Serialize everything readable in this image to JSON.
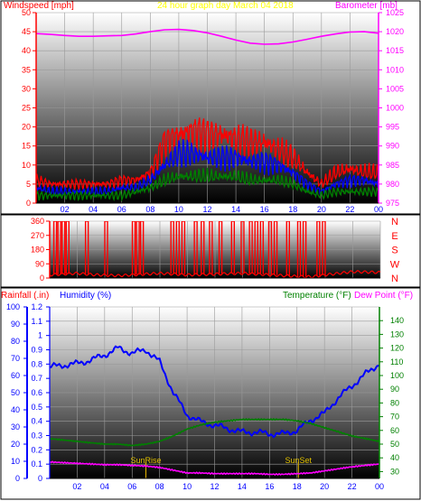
{
  "chart_data": [
    {
      "type": "line",
      "title": "24 hour graph day  March 04 2018",
      "ylabel_left": "Windspeed [mph]",
      "ylabel_right": "Barometer [mb]",
      "ylim_left": [
        0,
        50
      ],
      "ylim_right": [
        975,
        1025
      ],
      "yticks_left": [
        "0",
        "5",
        "10",
        "15",
        "20",
        "25",
        "30",
        "35",
        "40",
        "45",
        "50"
      ],
      "yticks_right": [
        "975",
        "980",
        "985",
        "990",
        "995",
        "1000",
        "1005",
        "1010",
        "1015",
        "1020",
        "1025"
      ],
      "xticks": [
        "02",
        "04",
        "06",
        "08",
        "10",
        "12",
        "14",
        "16",
        "18",
        "20",
        "22",
        "00"
      ],
      "x_hours": [
        0,
        1,
        2,
        3,
        4,
        5,
        6,
        7,
        8,
        9,
        10,
        11,
        12,
        13,
        14,
        15,
        16,
        17,
        18,
        19,
        20,
        21,
        22,
        23,
        24
      ],
      "series": [
        {
          "color": "#ff0000",
          "axis": "left",
          "values": [
            6,
            5,
            5,
            5,
            5,
            5,
            6,
            6,
            8,
            16,
            18,
            19,
            18,
            18,
            17,
            16,
            16,
            14,
            12,
            8,
            5,
            8,
            9,
            8,
            8
          ]
        },
        {
          "color": "#0000ff",
          "axis": "left",
          "values": [
            4,
            3,
            3,
            3,
            3,
            3,
            4,
            4,
            6,
            10,
            13,
            13,
            12,
            12,
            12,
            11,
            11,
            10,
            8,
            5,
            3,
            5,
            6,
            6,
            5
          ]
        },
        {
          "color": "#008000",
          "axis": "left",
          "values": [
            2,
            2,
            2,
            2,
            2,
            2,
            2,
            3,
            4,
            6,
            7,
            7,
            7,
            7,
            7,
            6,
            6,
            6,
            5,
            3,
            2,
            3,
            3,
            3,
            3
          ]
        },
        {
          "color": "#ff00ff",
          "axis": "right",
          "values": [
            1019.5,
            1019.3,
            1019,
            1018.8,
            1018.8,
            1018.9,
            1019,
            1019.4,
            1020,
            1020.5,
            1020.6,
            1020.3,
            1019.7,
            1018.8,
            1017.8,
            1017,
            1016.7,
            1016.8,
            1017.3,
            1018,
            1018.8,
            1019.4,
            1019.9,
            1020,
            1019.6
          ]
        }
      ]
    },
    {
      "type": "line",
      "yticks": [
        "0",
        "90",
        "180",
        "270",
        "360"
      ],
      "ylim": [
        0,
        360
      ],
      "ylabels_right": [
        "N",
        "W",
        "S",
        "E",
        "N"
      ],
      "xticks": [
        "02",
        "04",
        "06",
        "08",
        "10",
        "12",
        "14",
        "16",
        "18",
        "20",
        "22",
        "00"
      ],
      "series": [
        {
          "color": "#ff0000",
          "x_hours": [
            0,
            1,
            2,
            3,
            4,
            5,
            6,
            7,
            8,
            9,
            10,
            11,
            12,
            13,
            14,
            15,
            16,
            17,
            18,
            19,
            20,
            21,
            22,
            23,
            24
          ],
          "values": [
            20,
            25,
            30,
            22,
            18,
            15,
            20,
            25,
            30,
            25,
            20,
            22,
            25,
            28,
            30,
            25,
            20,
            15,
            10,
            8,
            20,
            30,
            40,
            38,
            35
          ]
        },
        {
          "color": "#ff0000",
          "kind": "spikes",
          "x_hours": [
            0.3,
            0.6,
            0.9,
            1.2,
            2.6,
            4.0,
            6.0,
            6.3,
            6.6,
            8.8,
            9.2,
            9.6,
            10.5,
            11.0,
            11.6,
            12.3,
            13.2,
            13.9,
            14.5,
            14.9,
            15.3,
            15.9,
            16.3,
            17.2,
            18.0,
            18.4,
            19.4,
            19.8
          ],
          "values": [
            360,
            360,
            360,
            360,
            360,
            360,
            360,
            360,
            360,
            360,
            360,
            360,
            360,
            360,
            360,
            360,
            360,
            360,
            360,
            360,
            360,
            360,
            360,
            360,
            360,
            360,
            360,
            360
          ]
        }
      ]
    },
    {
      "type": "line",
      "ylabel_left_1": "Rainfall (.in)",
      "ylabel_left_2": "Humidity (%)",
      "ylabel_right_1": "Temperature (°F)",
      "ylabel_right_2": "Dew Point (°F)",
      "yticks_humidity": [
        "0",
        "10",
        "20",
        "30",
        "40",
        "50",
        "60",
        "70",
        "80",
        "90",
        "100"
      ],
      "yticks_rain": [
        "0",
        "0.1",
        "0.2",
        "0.3",
        "0.4",
        "0.5",
        "0.6",
        "0.7",
        "0.8",
        "0.9",
        "1",
        "1.1",
        "1.2"
      ],
      "yticks_temp": [
        "30",
        "40",
        "50",
        "60",
        "70",
        "80",
        "90",
        "100",
        "110",
        "120",
        "130",
        "140"
      ],
      "ylim_humidity": [
        0,
        100
      ],
      "ylim_rain": [
        0,
        1.2
      ],
      "ylim_temp": [
        25,
        150
      ],
      "xticks": [
        "02",
        "04",
        "06",
        "08",
        "10",
        "12",
        "14",
        "16",
        "18",
        "20",
        "22",
        "00"
      ],
      "annotations": [
        {
          "label": "SunRise",
          "x_hour": 7.0
        },
        {
          "label": "SunSet",
          "x_hour": 18.1
        }
      ],
      "x_hours": [
        0,
        1,
        2,
        3,
        4,
        5,
        6,
        7,
        8,
        9,
        10,
        11,
        12,
        13,
        14,
        15,
        16,
        17,
        18,
        19,
        20,
        21,
        22,
        23,
        24
      ],
      "series": [
        {
          "color": "#0000ff",
          "axis": "humidity",
          "values": [
            65,
            66,
            67,
            69,
            72,
            76,
            73,
            75,
            68,
            50,
            37,
            33,
            31,
            29,
            27,
            27,
            26,
            26,
            28,
            34,
            38,
            47,
            54,
            61,
            67
          ]
        },
        {
          "color": "#008000",
          "axis": "temp",
          "values": [
            54,
            53,
            52,
            51,
            50,
            50,
            49,
            50,
            52,
            56,
            61,
            64,
            66,
            67,
            68,
            68,
            68,
            68,
            67,
            65,
            62,
            59,
            56,
            54,
            52
          ]
        },
        {
          "color": "#ff00ff",
          "axis": "temp",
          "values": [
            37,
            36.5,
            36,
            35.5,
            35,
            35,
            34.5,
            34,
            33,
            31,
            29,
            29,
            28.5,
            28.5,
            28.5,
            28.5,
            28,
            28,
            28.5,
            29,
            30.5,
            32,
            33.5,
            34.5,
            35.5
          ]
        }
      ]
    }
  ]
}
